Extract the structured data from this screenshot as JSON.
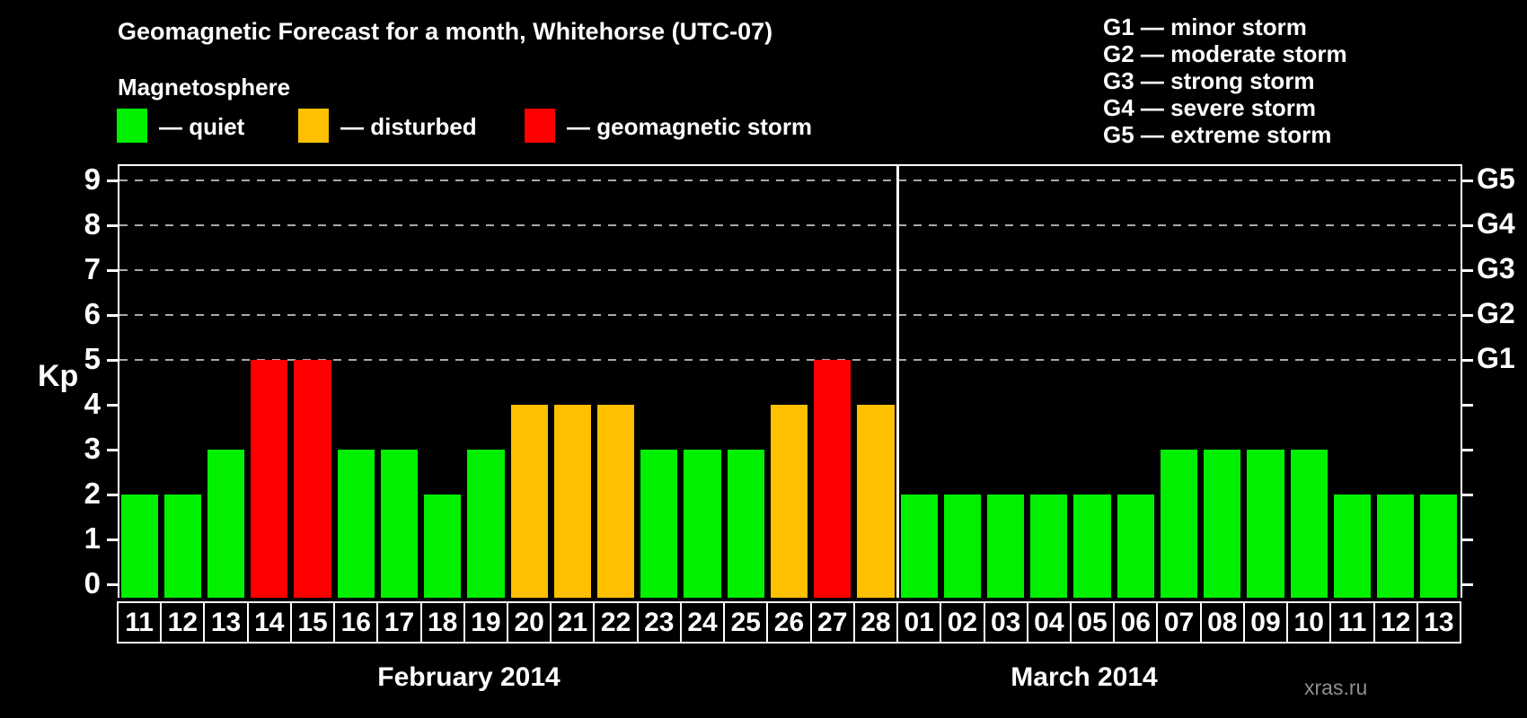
{
  "title": "Geomagnetic Forecast for a month, Whitehorse (UTC-07)",
  "subtitle": "Magnetosphere",
  "legend": {
    "items": [
      {
        "label": "— quiet",
        "status": "quiet"
      },
      {
        "label": "— disturbed",
        "status": "disturbed"
      },
      {
        "label": "— geomagnetic storm",
        "status": "storm"
      }
    ]
  },
  "storm_scale": {
    "lines": [
      "G1 — minor storm",
      "G2 — moderate storm",
      "G3 — strong storm",
      "G4 — severe storm",
      "G5 — extreme storm"
    ]
  },
  "watermark": "xras.ru",
  "chart_data": {
    "type": "bar",
    "title": "Geomagnetic Forecast for a month, Whitehorse (UTC-07)",
    "y_axis": {
      "label": "Kp",
      "ticks": [
        0,
        1,
        2,
        3,
        4,
        5,
        6,
        7,
        8,
        9
      ],
      "range": [
        0,
        9
      ],
      "gridlines_at": [
        5,
        6,
        7,
        8,
        9
      ],
      "grid_style": "dashed"
    },
    "right_axis": {
      "labels": [
        {
          "at": 5,
          "text": "G1"
        },
        {
          "at": 6,
          "text": "G2"
        },
        {
          "at": 7,
          "text": "G3"
        },
        {
          "at": 8,
          "text": "G4"
        },
        {
          "at": 9,
          "text": "G5"
        }
      ]
    },
    "status_colors": {
      "quiet": "#00F000",
      "disturbed": "#FFC000",
      "storm": "#FF0000"
    },
    "months": [
      {
        "label": "February 2014",
        "bars": [
          {
            "day": "11",
            "kp": 2,
            "status": "quiet"
          },
          {
            "day": "12",
            "kp": 2,
            "status": "quiet"
          },
          {
            "day": "13",
            "kp": 3,
            "status": "quiet"
          },
          {
            "day": "14",
            "kp": 5,
            "status": "storm"
          },
          {
            "day": "15",
            "kp": 5,
            "status": "storm"
          },
          {
            "day": "16",
            "kp": 3,
            "status": "quiet"
          },
          {
            "day": "17",
            "kp": 3,
            "status": "quiet"
          },
          {
            "day": "18",
            "kp": 2,
            "status": "quiet"
          },
          {
            "day": "19",
            "kp": 3,
            "status": "quiet"
          },
          {
            "day": "20",
            "kp": 4,
            "status": "disturbed"
          },
          {
            "day": "21",
            "kp": 4,
            "status": "disturbed"
          },
          {
            "day": "22",
            "kp": 4,
            "status": "disturbed"
          },
          {
            "day": "23",
            "kp": 3,
            "status": "quiet"
          },
          {
            "day": "24",
            "kp": 3,
            "status": "quiet"
          },
          {
            "day": "25",
            "kp": 3,
            "status": "quiet"
          },
          {
            "day": "26",
            "kp": 4,
            "status": "disturbed"
          },
          {
            "day": "27",
            "kp": 5,
            "status": "storm"
          },
          {
            "day": "28",
            "kp": 4,
            "status": "disturbed"
          }
        ]
      },
      {
        "label": "March 2014",
        "bars": [
          {
            "day": "01",
            "kp": 2,
            "status": "quiet"
          },
          {
            "day": "02",
            "kp": 2,
            "status": "quiet"
          },
          {
            "day": "03",
            "kp": 2,
            "status": "quiet"
          },
          {
            "day": "04",
            "kp": 2,
            "status": "quiet"
          },
          {
            "day": "05",
            "kp": 2,
            "status": "quiet"
          },
          {
            "day": "06",
            "kp": 2,
            "status": "quiet"
          },
          {
            "day": "07",
            "kp": 3,
            "status": "quiet"
          },
          {
            "day": "08",
            "kp": 3,
            "status": "quiet"
          },
          {
            "day": "09",
            "kp": 3,
            "status": "quiet"
          },
          {
            "day": "10",
            "kp": 3,
            "status": "quiet"
          },
          {
            "day": "11",
            "kp": 2,
            "status": "quiet"
          },
          {
            "day": "12",
            "kp": 2,
            "status": "quiet"
          },
          {
            "day": "13",
            "kp": 2,
            "status": "quiet"
          }
        ]
      }
    ]
  }
}
